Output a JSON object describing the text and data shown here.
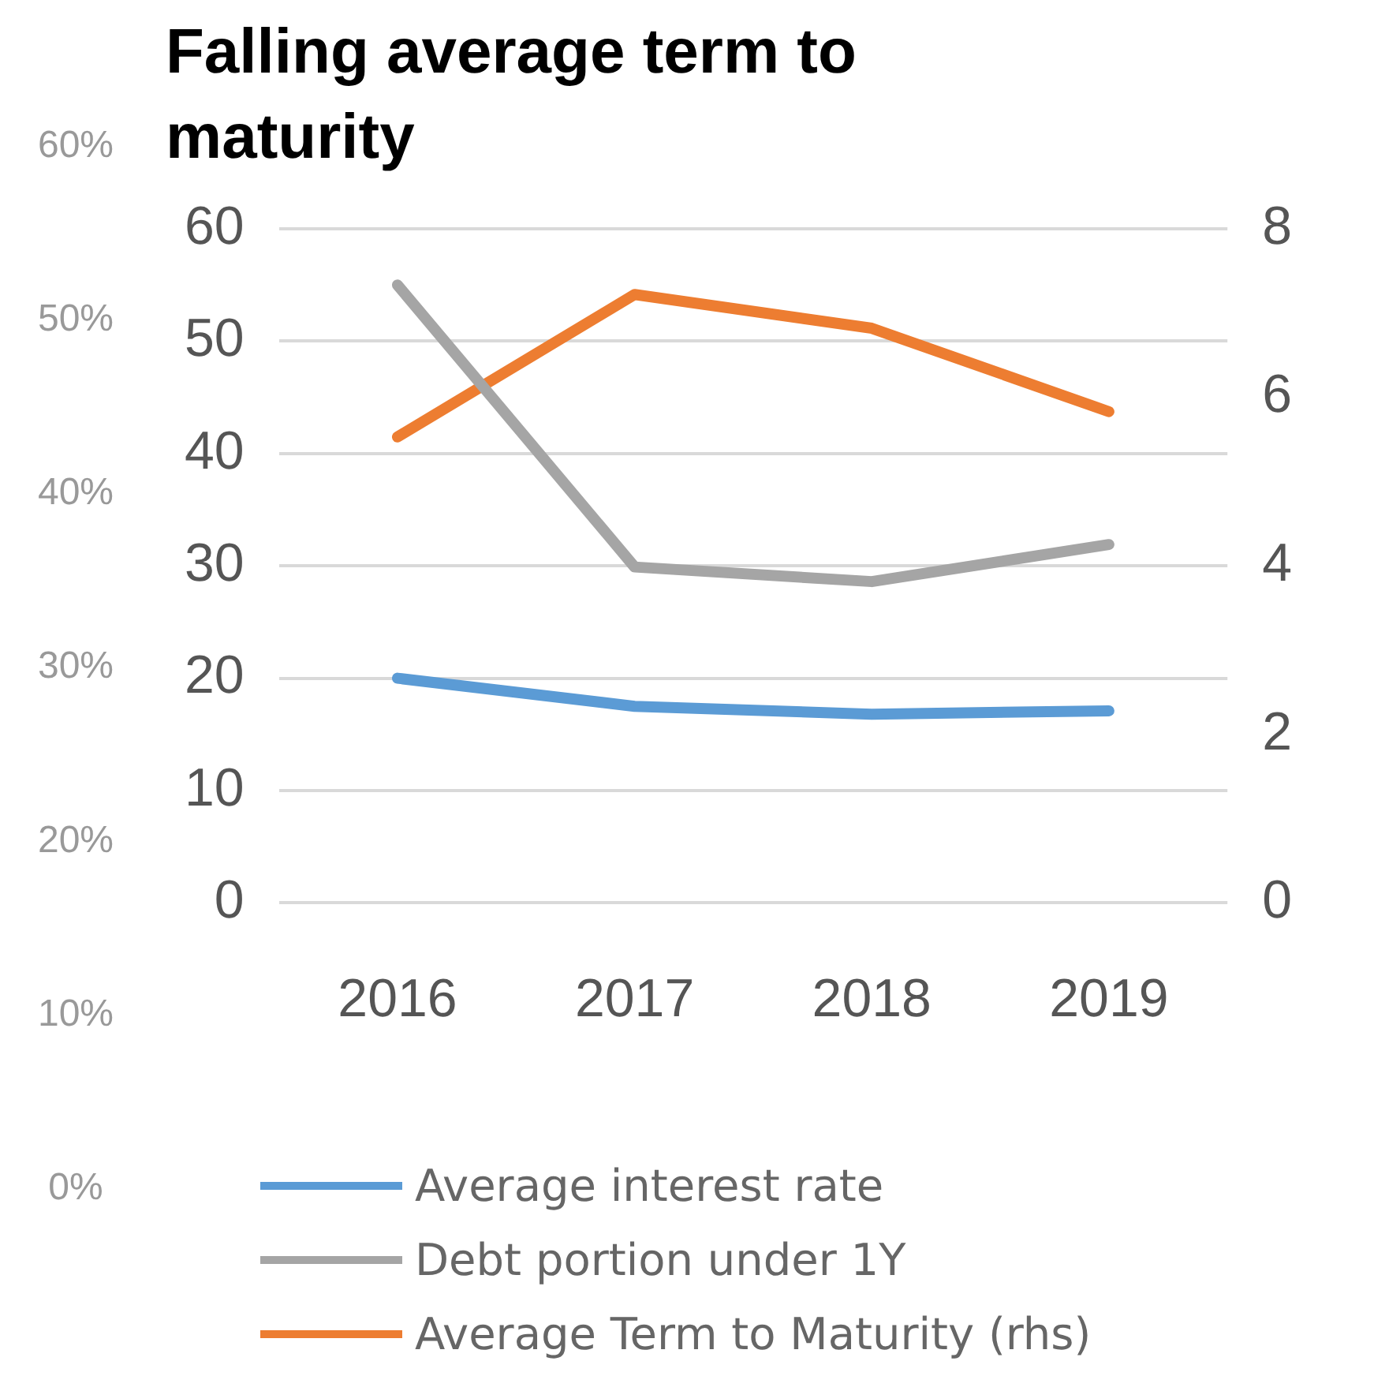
{
  "chart_data": {
    "type": "line",
    "title": "Falling average term to maturity",
    "categories": [
      "2016",
      "2017",
      "2018",
      "2019"
    ],
    "series": [
      {
        "name": "Average interest rate",
        "color": "#5b9bd5",
        "values": [
          20,
          17.5,
          16.8,
          17.1
        ]
      },
      {
        "name": "Debt portion under 1Y",
        "color": "#a5a5a5",
        "values": [
          55,
          29.9,
          28.6,
          31.9
        ]
      },
      {
        "name": "Average Term to Maturity (rhs)",
        "color": "#ed7d31",
        "axis": "y2",
        "values": [
          5.53,
          7.22,
          6.82,
          5.83
        ]
      }
    ],
    "ylim": [
      0,
      60
    ],
    "yticks": [
      0,
      10,
      20,
      30,
      40,
      50,
      60
    ],
    "y2lim": [
      0,
      8
    ],
    "y2ticks": [
      0,
      2,
      4,
      6,
      8
    ],
    "y3lim": [
      0,
      60
    ],
    "y3ticks": [
      {
        "value": 0,
        "label": "0%"
      },
      {
        "value": 10,
        "label": "10%"
      },
      {
        "value": 20,
        "label": "20%"
      },
      {
        "value": 30,
        "label": "30%"
      },
      {
        "value": 40,
        "label": "40%"
      },
      {
        "value": 50,
        "label": "50%"
      },
      {
        "value": 60,
        "label": "60%"
      }
    ],
    "grid": "y",
    "legend": "bottom",
    "marker": "none",
    "line_style": "solid"
  }
}
